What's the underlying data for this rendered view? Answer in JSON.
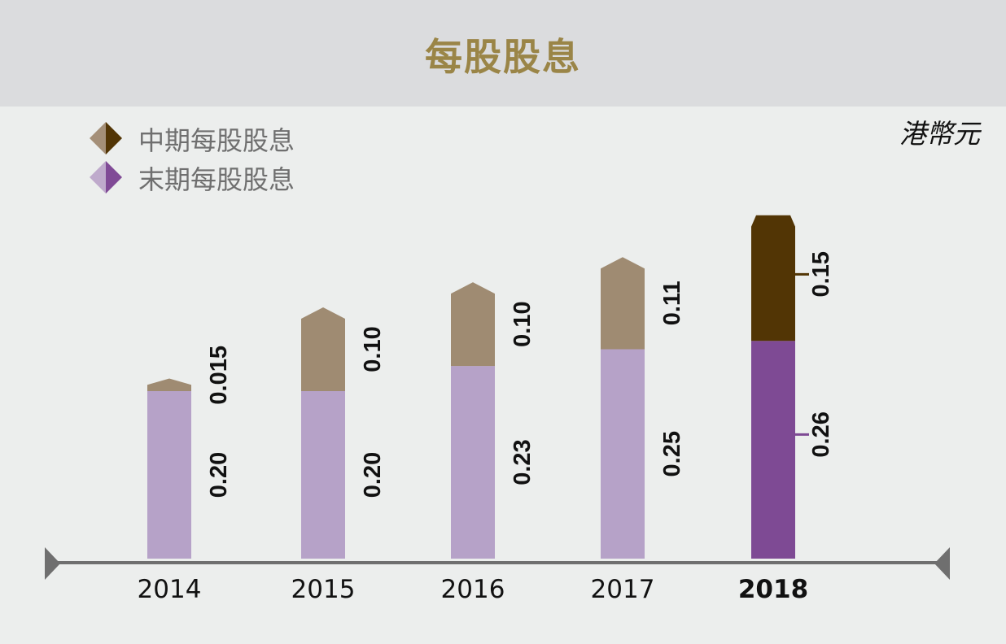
{
  "header": {
    "title": "每股股息"
  },
  "unit_label": "港幣元",
  "legend": [
    {
      "label": "中期每股股息",
      "light": "#a48f78",
      "dark": "#523505"
    },
    {
      "label": "末期每股股息",
      "light": "#bfaacc",
      "dark": "#804a96"
    }
  ],
  "colors": {
    "interim": "#9f8b72",
    "final": "#b6a2c8",
    "interim_highlight": "#523505",
    "final_highlight": "#7e4a94",
    "axis": "#6f6f6f",
    "title": "#9a8547"
  },
  "chart_data": {
    "type": "bar",
    "stacked": true,
    "categories": [
      "2014",
      "2015",
      "2016",
      "2017",
      "2018"
    ],
    "highlight_category": "2018",
    "series": [
      {
        "name": "末期每股股息",
        "values": [
          0.2,
          0.2,
          0.23,
          0.25,
          0.26
        ],
        "labels": [
          "0.20",
          "0.20",
          "0.23",
          "0.25",
          "0.26"
        ]
      },
      {
        "name": "中期每股股息",
        "values": [
          0.015,
          0.1,
          0.1,
          0.11,
          0.15
        ],
        "labels": [
          "0.015",
          "0.10",
          "0.10",
          "0.11",
          "0.15"
        ]
      }
    ],
    "unit": "港幣元",
    "ylim": [
      0,
      0.45
    ]
  }
}
